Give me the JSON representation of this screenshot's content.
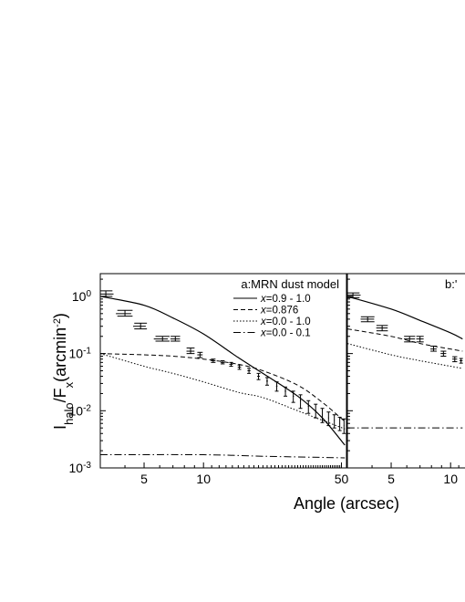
{
  "chart_data": [
    {
      "panel": "a",
      "type": "line",
      "title": "a:MRN dust model",
      "xlabel": "Angle (arcsec)",
      "ylabel": "Ihalo/Fx(arcmin-2)",
      "ylabel_parts": {
        "main": "I",
        "sub": "halo",
        "slash": "/F",
        "sub2": "x",
        "unit_open": "(arcmin",
        "sup": "-2",
        "unit_close": ")"
      },
      "x_scale": "log",
      "y_scale": "log",
      "xlim": [
        3.0,
        53
      ],
      "ylim": [
        0.001,
        2.5
      ],
      "x_ticks": [
        5,
        10,
        50
      ],
      "x_tick_labels": [
        "5",
        "10",
        "50"
      ],
      "y_ticks": [
        1,
        0.1,
        0.01,
        0.001
      ],
      "y_tick_labels": [
        {
          "base": "10",
          "exp": "0"
        },
        {
          "base": "10",
          "exp": "-1"
        },
        {
          "base": "10",
          "exp": "-2"
        },
        {
          "base": "10",
          "exp": "-3"
        }
      ],
      "legend_position": "top-right",
      "series": [
        {
          "name": "x=0.9 - 1.0",
          "legend_var": "x",
          "legend_rest": "=0.9 - 1.0",
          "style": "solid",
          "x": [
            3.0,
            5,
            7,
            10,
            15,
            20,
            30,
            40,
            52
          ],
          "y": [
            1.0,
            0.7,
            0.42,
            0.22,
            0.085,
            0.045,
            0.018,
            0.0075,
            0.0025
          ]
        },
        {
          "name": "x=0.876",
          "legend_var": "x",
          "legend_rest": "=0.876",
          "style": "dashed",
          "x": [
            3.0,
            5,
            7,
            10,
            15,
            20,
            30,
            40,
            52
          ],
          "y": [
            0.1,
            0.095,
            0.09,
            0.08,
            0.065,
            0.05,
            0.028,
            0.014,
            0.0065
          ]
        },
        {
          "name": "x=0.0 - 1.0",
          "legend_var": "x",
          "legend_rest": "=0.0 - 1.0",
          "style": "dotted",
          "x": [
            3.0,
            5,
            7,
            10,
            15,
            20,
            30,
            40,
            52
          ],
          "y": [
            0.1,
            0.06,
            0.045,
            0.032,
            0.021,
            0.017,
            0.01,
            0.0068,
            0.0048
          ]
        },
        {
          "name": "x=0.0 - 0.1",
          "legend_var": "x",
          "legend_rest": "=0.0 - 0.1",
          "style": "dashdot",
          "x": [
            3.0,
            10,
            20,
            52
          ],
          "y": [
            0.0017,
            0.0017,
            0.0016,
            0.0015
          ]
        }
      ],
      "data_points": [
        {
          "x": 3.2,
          "y": 1.1,
          "xerr_lo": 3.0,
          "xerr_hi": 3.5,
          "yerr_lo": 1.0,
          "yerr_hi": 1.25
        },
        {
          "x": 4.0,
          "y": 0.5,
          "xerr_lo": 3.6,
          "xerr_hi": 4.3,
          "yerr_lo": 0.45,
          "yerr_hi": 0.57
        },
        {
          "x": 4.8,
          "y": 0.3,
          "xerr_lo": 4.4,
          "xerr_hi": 5.1,
          "yerr_lo": 0.27,
          "yerr_hi": 0.34
        },
        {
          "x": 6.2,
          "y": 0.18,
          "xerr_lo": 5.6,
          "xerr_hi": 6.6,
          "yerr_lo": 0.165,
          "yerr_hi": 0.2
        },
        {
          "x": 7.2,
          "y": 0.18,
          "xerr_lo": 6.8,
          "xerr_hi": 7.6,
          "yerr_lo": 0.165,
          "yerr_hi": 0.2
        },
        {
          "x": 8.6,
          "y": 0.11,
          "xerr_lo": 8.2,
          "xerr_hi": 9.0,
          "yerr_lo": 0.1,
          "yerr_hi": 0.125
        },
        {
          "x": 9.6,
          "y": 0.095,
          "xerr_lo": 9.3,
          "xerr_hi": 9.9,
          "yerr_lo": 0.085,
          "yerr_hi": 0.105
        },
        {
          "x": 11.2,
          "y": 0.075,
          "xerr_lo": 10.9,
          "xerr_hi": 11.5,
          "yerr_lo": 0.07,
          "yerr_hi": 0.08
        },
        {
          "x": 12.5,
          "y": 0.07,
          "xerr_lo": 12.2,
          "xerr_hi": 12.8,
          "yerr_lo": 0.066,
          "yerr_hi": 0.075
        },
        {
          "x": 13.8,
          "y": 0.065,
          "xerr_lo": 13.5,
          "xerr_hi": 14.1,
          "yerr_lo": 0.06,
          "yerr_hi": 0.07
        },
        {
          "x": 15.2,
          "y": 0.058,
          "xerr_lo": 14.9,
          "xerr_hi": 15.5,
          "yerr_lo": 0.053,
          "yerr_hi": 0.063
        },
        {
          "x": 17.0,
          "y": 0.05,
          "xerr_lo": 16.7,
          "xerr_hi": 17.3,
          "yerr_lo": 0.045,
          "yerr_hi": 0.055
        },
        {
          "x": 19.0,
          "y": 0.04,
          "xerr_lo": 18.7,
          "xerr_hi": 19.3,
          "yerr_lo": 0.035,
          "yerr_hi": 0.045
        },
        {
          "x": 21.0,
          "y": 0.033,
          "xerr_lo": 20.8,
          "xerr_hi": 21.2,
          "yerr_lo": 0.028,
          "yerr_hi": 0.038
        },
        {
          "x": 23.5,
          "y": 0.027,
          "xerr_lo": 23.3,
          "xerr_hi": 23.7,
          "yerr_lo": 0.022,
          "yerr_hi": 0.032
        },
        {
          "x": 26.0,
          "y": 0.022,
          "xerr_lo": 25.8,
          "xerr_hi": 26.2,
          "yerr_lo": 0.018,
          "yerr_hi": 0.026
        },
        {
          "x": 28.5,
          "y": 0.018,
          "xerr_lo": 28.3,
          "xerr_hi": 28.7,
          "yerr_lo": 0.014,
          "yerr_hi": 0.022
        },
        {
          "x": 31.0,
          "y": 0.015,
          "xerr_lo": 30.8,
          "xerr_hi": 31.2,
          "yerr_lo": 0.011,
          "yerr_hi": 0.019
        },
        {
          "x": 34.0,
          "y": 0.012,
          "xerr_lo": 33.8,
          "xerr_hi": 34.2,
          "yerr_lo": 0.009,
          "yerr_hi": 0.015
        },
        {
          "x": 37.0,
          "y": 0.01,
          "xerr_lo": 36.8,
          "xerr_hi": 37.2,
          "yerr_lo": 0.0075,
          "yerr_hi": 0.013
        },
        {
          "x": 40.0,
          "y": 0.0085,
          "xerr_lo": 39.8,
          "xerr_hi": 40.2,
          "yerr_lo": 0.0062,
          "yerr_hi": 0.011
        },
        {
          "x": 43.0,
          "y": 0.0075,
          "xerr_lo": 42.8,
          "xerr_hi": 43.2,
          "yerr_lo": 0.0055,
          "yerr_hi": 0.0095
        },
        {
          "x": 46.0,
          "y": 0.0068,
          "xerr_lo": 45.8,
          "xerr_hi": 46.2,
          "yerr_lo": 0.005,
          "yerr_hi": 0.0085
        },
        {
          "x": 49.0,
          "y": 0.006,
          "xerr_lo": 48.8,
          "xerr_hi": 49.2,
          "yerr_lo": 0.0045,
          "yerr_hi": 0.0077
        },
        {
          "x": 51.5,
          "y": 0.0055,
          "xerr_lo": 51.3,
          "xerr_hi": 51.7,
          "yerr_lo": 0.004,
          "yerr_hi": 0.0072
        }
      ]
    },
    {
      "panel": "b",
      "type": "line",
      "title": "b:'",
      "x_scale": "log",
      "y_scale": "log",
      "xlim": [
        3.0,
        53
      ],
      "ylim": [
        0.001,
        2.5
      ],
      "x_ticks": [
        5,
        10
      ],
      "x_tick_labels": [
        "5",
        "10"
      ],
      "series": [
        {
          "name": "",
          "style": "solid",
          "x": [
            3.0,
            5,
            7,
            10,
            11.5
          ],
          "y": [
            1.0,
            0.6,
            0.38,
            0.23,
            0.18
          ]
        },
        {
          "name": "",
          "style": "dashed",
          "x": [
            3.0,
            5,
            7,
            10,
            11.5
          ],
          "y": [
            0.27,
            0.2,
            0.15,
            0.12,
            0.11
          ]
        },
        {
          "name": "",
          "style": "dotted",
          "x": [
            3.0,
            5,
            7,
            10,
            11.5
          ],
          "y": [
            0.15,
            0.095,
            0.075,
            0.06,
            0.055
          ]
        },
        {
          "name": "",
          "style": "dashdot",
          "x": [
            3.0,
            11.5
          ],
          "y": [
            0.005,
            0.005
          ]
        }
      ],
      "data_points": [
        {
          "x": 3.2,
          "y": 1.05,
          "xerr_lo": 3.0,
          "xerr_hi": 3.5,
          "yerr_lo": 0.95,
          "yerr_hi": 1.15
        },
        {
          "x": 3.8,
          "y": 0.4,
          "xerr_lo": 3.5,
          "xerr_hi": 4.1,
          "yerr_lo": 0.36,
          "yerr_hi": 0.44
        },
        {
          "x": 4.5,
          "y": 0.28,
          "xerr_lo": 4.2,
          "xerr_hi": 4.8,
          "yerr_lo": 0.25,
          "yerr_hi": 0.31
        },
        {
          "x": 6.2,
          "y": 0.18,
          "xerr_lo": 5.8,
          "xerr_hi": 6.6,
          "yerr_lo": 0.16,
          "yerr_hi": 0.2
        },
        {
          "x": 7.0,
          "y": 0.18,
          "xerr_lo": 6.7,
          "xerr_hi": 7.3,
          "yerr_lo": 0.16,
          "yerr_hi": 0.2
        },
        {
          "x": 8.2,
          "y": 0.12,
          "xerr_lo": 7.9,
          "xerr_hi": 8.5,
          "yerr_lo": 0.11,
          "yerr_hi": 0.135
        },
        {
          "x": 9.2,
          "y": 0.1,
          "xerr_lo": 8.9,
          "xerr_hi": 9.5,
          "yerr_lo": 0.09,
          "yerr_hi": 0.11
        },
        {
          "x": 10.5,
          "y": 0.08,
          "xerr_lo": 10.2,
          "xerr_hi": 10.8,
          "yerr_lo": 0.072,
          "yerr_hi": 0.088
        },
        {
          "x": 11.3,
          "y": 0.075,
          "xerr_lo": 11.1,
          "xerr_hi": 11.5,
          "yerr_lo": 0.068,
          "yerr_hi": 0.082
        }
      ]
    }
  ]
}
